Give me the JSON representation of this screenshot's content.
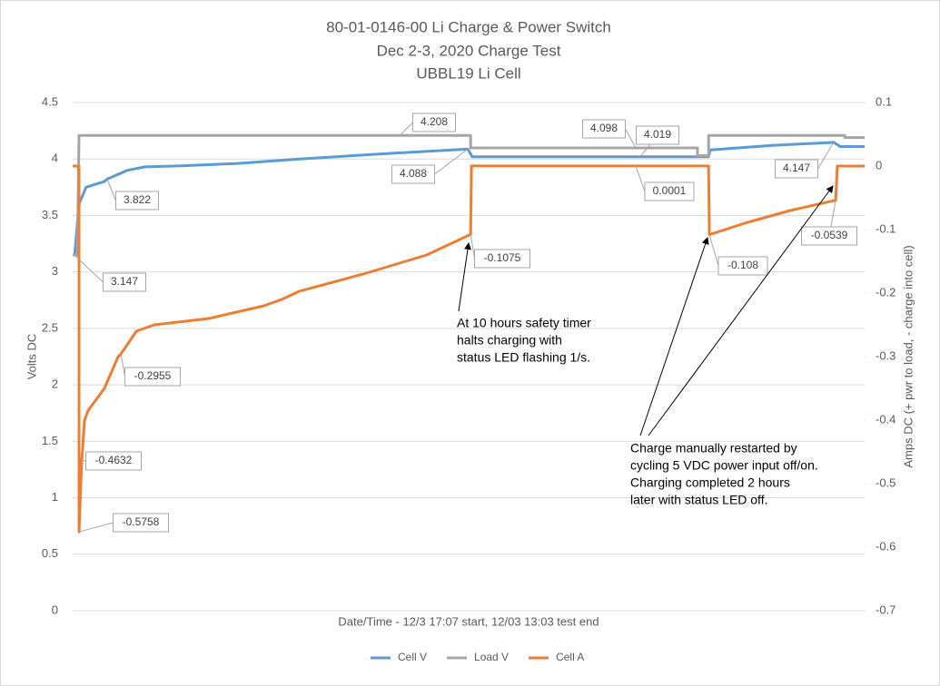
{
  "chart_data": {
    "type": "line",
    "title": [
      "80-01-0146-00 Li Charge & Power Switch",
      "Dec 2-3, 2020 Charge Test",
      "UBBL19 Li Cell"
    ],
    "x_label": "Date/Time - 12/3 17:07 start, 12/03 13:03 test end",
    "y_label": "Volts DC",
    "y2_label": "Amps DC (+ pwr to load, - charge into cell)",
    "xlim": [
      0,
      20
    ],
    "ylim": [
      0,
      4.5
    ],
    "yticks": [
      0,
      0.5,
      1,
      1.5,
      2,
      2.5,
      3,
      3.5,
      4,
      4.5
    ],
    "y2lim": [
      -0.7,
      0.1
    ],
    "y2ticks": [
      -0.7,
      -0.6,
      -0.5,
      -0.4,
      -0.3,
      -0.2,
      -0.1,
      0,
      0.1
    ],
    "grid": true,
    "legend": "bottom",
    "series": [
      {
        "name": "Cell V",
        "color": "#5b9bd5",
        "x": [
          0.05,
          0.16,
          0.34,
          0.8,
          0.87,
          1.38,
          1.83,
          2.75,
          4.13,
          5.73,
          8.03,
          9.98,
          10.09,
          16.06,
          16.1,
          17.66,
          19.22,
          19.38,
          20
        ],
        "values": [
          3.147,
          3.6,
          3.75,
          3.8,
          3.822,
          3.9,
          3.93,
          3.94,
          3.96,
          4.0,
          4.05,
          4.088,
          4.02,
          4.02,
          4.08,
          4.12,
          4.147,
          4.11,
          4.11
        ]
      },
      {
        "name": "Load V",
        "color": "#a5a5a5",
        "x": [
          0,
          0.12,
          0.16,
          10.05,
          10.05,
          15.78,
          15.78,
          16.06,
          16.06,
          19.5,
          19.5,
          20
        ],
        "values": [
          3.15,
          3.15,
          4.208,
          4.208,
          4.098,
          4.098,
          4.03,
          4.03,
          4.208,
          4.208,
          4.19,
          4.19
        ]
      },
      {
        "name": "Cell A",
        "color": "#ed7d31",
        "axis": "y2",
        "x": [
          0,
          0.16,
          0.16,
          0.23,
          0.3,
          0.39,
          0.8,
          1.15,
          1.22,
          1.61,
          2.06,
          3.44,
          4.83,
          5.28,
          5.73,
          7.34,
          8.94,
          10.05,
          10.07,
          16.06,
          16.08,
          16.97,
          18.12,
          19.27,
          19.31,
          20
        ],
        "values": [
          0,
          0,
          -0.5758,
          -0.4632,
          -0.4,
          -0.385,
          -0.35,
          -0.3,
          -0.2955,
          -0.26,
          -0.25,
          -0.24,
          -0.22,
          -0.21,
          -0.197,
          -0.17,
          -0.14,
          -0.1075,
          0.0001,
          0.0001,
          -0.108,
          -0.09,
          -0.07,
          -0.0539,
          0,
          0
        ]
      }
    ],
    "callouts": [
      {
        "text": "4.208",
        "x": 8.26,
        "y": 4.208
      },
      {
        "text": "4.088",
        "x": 9.98,
        "y": 4.088
      },
      {
        "text": "3.822",
        "x": 0.87,
        "y": 3.822
      },
      {
        "text": "3.147",
        "x": 0.05,
        "y": 3.147
      },
      {
        "text": "4.098",
        "x": 14.22,
        "y": 4.098
      },
      {
        "text": "4.019",
        "x": 14.33,
        "y": 4.019
      },
      {
        "text": "0.0001",
        "x": 14.22,
        "y": 0.0001,
        "axis": "y2"
      },
      {
        "text": "4.147",
        "x": 19.22,
        "y": 4.147
      },
      {
        "text": "-0.1075",
        "x": 10.05,
        "y": -0.1075,
        "axis": "y2"
      },
      {
        "text": "-0.108",
        "x": 16.08,
        "y": -0.108,
        "axis": "y2"
      },
      {
        "text": "-0.0539",
        "x": 19.27,
        "y": -0.0539,
        "axis": "y2"
      },
      {
        "text": "-0.2955",
        "x": 1.22,
        "y": -0.2955,
        "axis": "y2"
      },
      {
        "text": "-0.4632",
        "x": 0.23,
        "y": -0.4632,
        "axis": "y2"
      },
      {
        "text": "-0.5758",
        "x": 0.16,
        "y": -0.5758,
        "axis": "y2"
      }
    ],
    "notes": [
      {
        "lines": [
          "At 10 hours safety timer",
          "halts charging with",
          "status LED flashing 1/s."
        ]
      },
      {
        "lines": [
          "Charge manually restarted by",
          "cycling 5 VDC power input off/on.",
          "Charging completed 2 hours",
          "later with status LED off."
        ]
      }
    ]
  }
}
